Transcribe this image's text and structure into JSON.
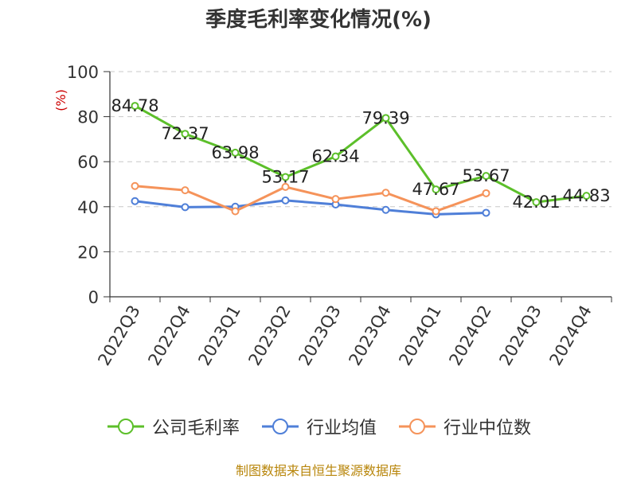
{
  "chart_data": {
    "type": "line",
    "title": "季度毛利率变化情况(%)",
    "ylabel": "(%)",
    "xlabel": "",
    "ylim": [
      0,
      100
    ],
    "yticks": [
      0,
      20,
      40,
      60,
      80,
      100
    ],
    "grid": true,
    "categories": [
      "2022Q3",
      "2022Q4",
      "2023Q1",
      "2023Q2",
      "2023Q3",
      "2023Q4",
      "2024Q1",
      "2024Q2",
      "2024Q3",
      "2024Q4"
    ],
    "series": [
      {
        "name": "公司毛利率",
        "color": "#5cbf2a",
        "values": [
          84.78,
          72.37,
          63.98,
          53.17,
          62.34,
          79.39,
          47.67,
          53.67,
          42.01,
          44.83
        ],
        "labels": [
          "84.78",
          "72.37",
          "63.98",
          "53.17",
          "62.34",
          "79.39",
          "47.67",
          "53.67",
          "42.01",
          "44.83"
        ]
      },
      {
        "name": "行业均值",
        "color": "#4f7fd8",
        "values": [
          42.5,
          39.8,
          40.0,
          42.8,
          41.0,
          38.6,
          36.6,
          37.3,
          null,
          null
        ]
      },
      {
        "name": "行业中位数",
        "color": "#f5935a",
        "values": [
          49.2,
          47.3,
          38.0,
          48.8,
          43.4,
          46.2,
          38.0,
          46.0,
          null,
          null
        ]
      }
    ],
    "legend_position": "bottom"
  },
  "source": "制图数据来自恒生聚源数据库"
}
